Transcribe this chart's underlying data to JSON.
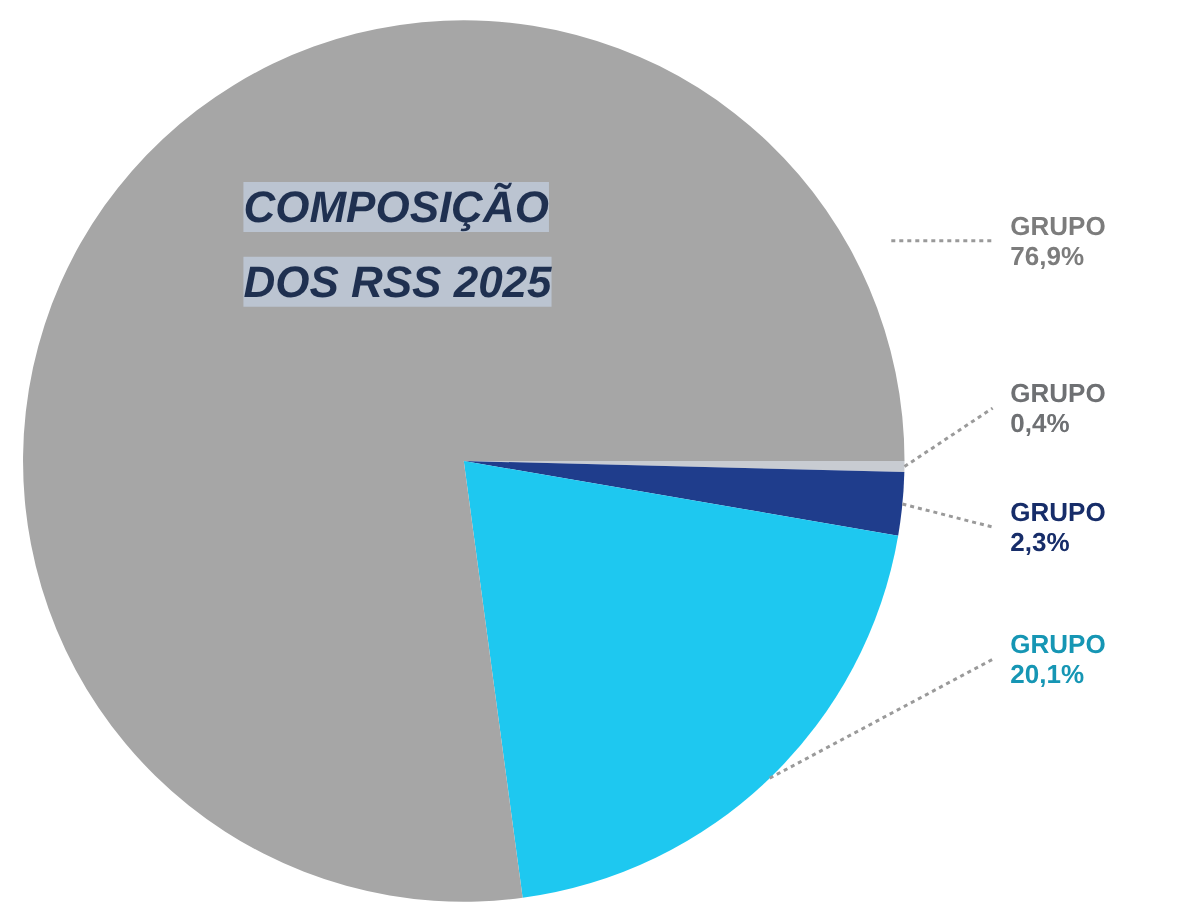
{
  "chart_data": {
    "type": "pie",
    "title": "COMPOSIÇÃO DOS RSS 2025",
    "categories": [
      "GRUPO",
      "GRUPO",
      "GRUPO",
      "GRUPO"
    ],
    "values": [
      0.4,
      2.3,
      20.1,
      76.9
    ],
    "colors": [
      "#c8ccd2",
      "#1f3d8c",
      "#1ec8f0",
      "#a6a6a6"
    ],
    "value_labels": [
      "0,4%",
      "2,3%",
      "20,1%",
      "76,9%"
    ]
  }
}
